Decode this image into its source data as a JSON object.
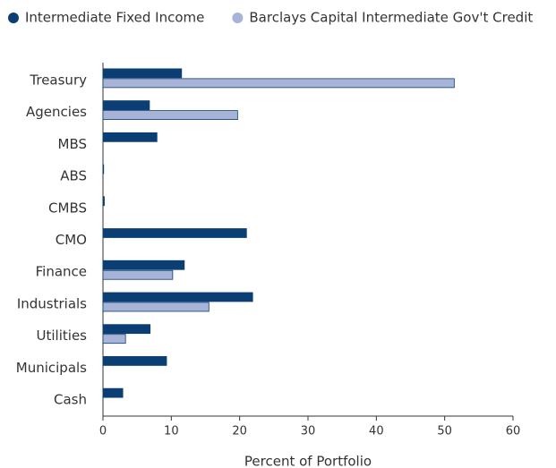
{
  "chart_data": {
    "type": "hbar",
    "xlabel": "Percent of Portfolio",
    "categories": [
      "Treasury",
      "Agencies",
      "MBS",
      "ABS",
      "CMBS",
      "CMO",
      "Finance",
      "Industrials",
      "Utilities",
      "Municipals",
      "Cash"
    ],
    "series": [
      {
        "name": "Intermediate Fixed Income",
        "color": "#0b3f74",
        "values": [
          11.5,
          6.8,
          7.9,
          0.1,
          0.2,
          21.0,
          11.9,
          21.9,
          6.9,
          9.3,
          2.9
        ]
      },
      {
        "name": "Barclays Capital Intermediate Gov't Credit",
        "color": "#a7b3d7",
        "values": [
          51.4,
          19.7,
          0,
          0,
          0,
          0,
          10.2,
          15.5,
          3.3,
          0,
          0
        ]
      }
    ],
    "xlim": [
      0,
      60
    ],
    "xticks": [
      0,
      10,
      20,
      30,
      40,
      50,
      60
    ]
  }
}
